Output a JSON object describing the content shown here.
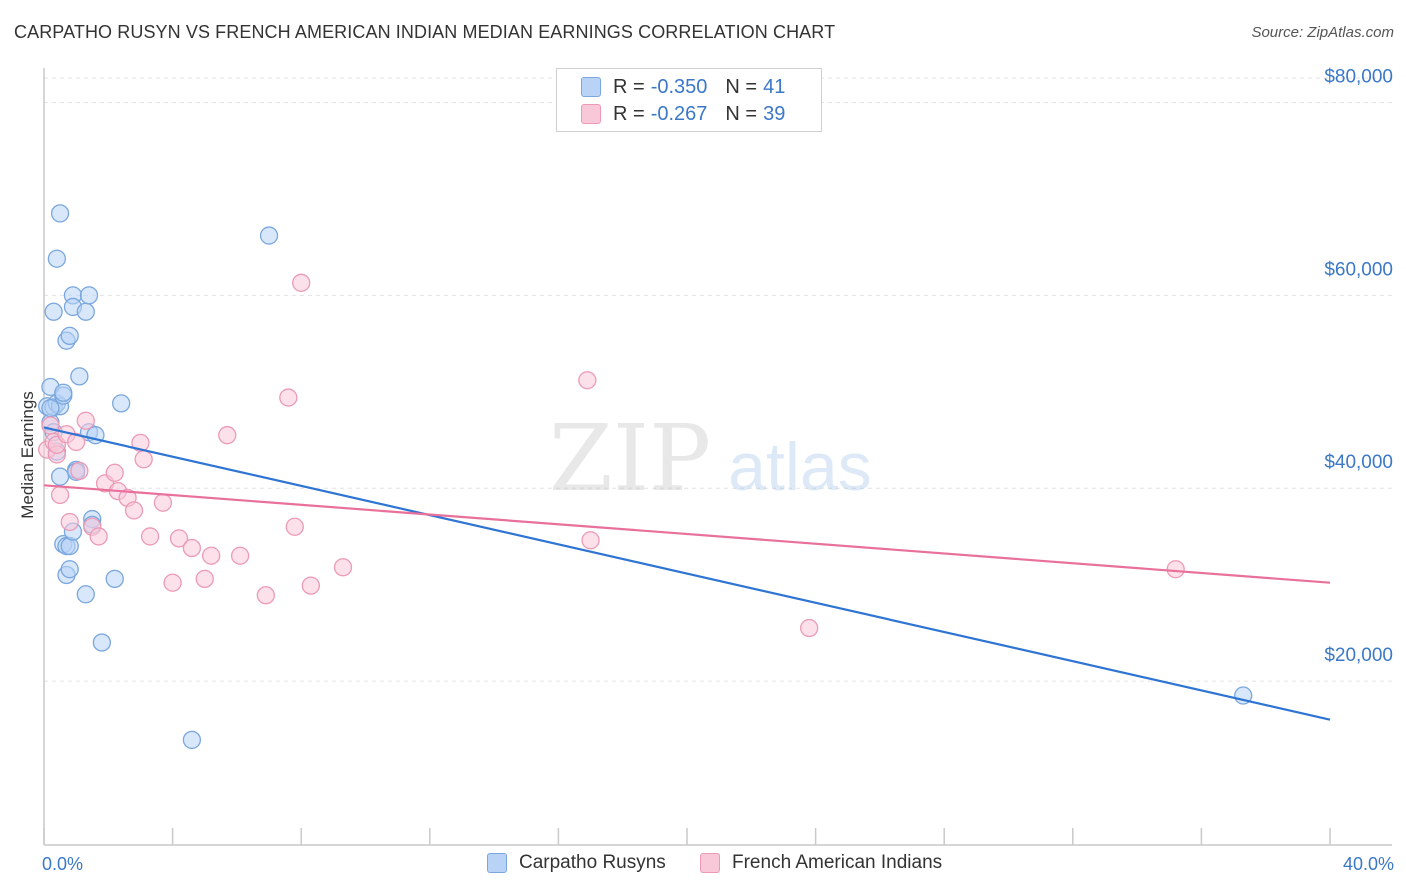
{
  "title": "CARPATHO RUSYN VS FRENCH AMERICAN INDIAN MEDIAN EARNINGS CORRELATION CHART",
  "source": "Source: ZipAtlas.com",
  "watermark": {
    "part1": "ZIP",
    "part2": "atlas"
  },
  "colors": {
    "blue_fill": "#b8d3f5",
    "blue_stroke": "#7aa7de",
    "blue_line": "#2e74d3",
    "pink_fill": "#f9c8d8",
    "pink_stroke": "#ec9ab5",
    "pink_line": "#e8709a",
    "accent_text": "#3b78c8",
    "grid": "#e3e3e3"
  },
  "legend": {
    "rows": [
      {
        "r_label": "R =",
        "r_value": "-0.350",
        "n_label": "N =",
        "n_value": "41"
      },
      {
        "r_label": "R =",
        "r_value": "-0.267",
        "n_label": "N =",
        "n_value": "39"
      }
    ]
  },
  "bottom_legend": {
    "series1": "Carpatho Rusyns",
    "series2": "French American Indians"
  },
  "chart_data": {
    "type": "scatter",
    "title": "CARPATHO RUSYN VS FRENCH AMERICAN INDIAN MEDIAN EARNINGS CORRELATION CHART",
    "xlabel": "",
    "ylabel": "Median Earnings",
    "xlim": [
      0,
      40
    ],
    "ylim": [
      3000,
      87000
    ],
    "x_tick_labels": [
      "0.0%",
      "40.0%"
    ],
    "y_ticks": [
      20000,
      40000,
      60000,
      80000
    ],
    "y_tick_labels": [
      "$20,000",
      "$40,000",
      "$60,000",
      "$80,000"
    ],
    "grid": true,
    "series": [
      {
        "name": "Carpatho Rusyns",
        "r": -0.35,
        "n": 41,
        "trend": {
          "x": [
            0,
            40
          ],
          "y": [
            46300,
            16000
          ]
        },
        "points": [
          {
            "x": 0.1,
            "y": 48500
          },
          {
            "x": 0.2,
            "y": 50500
          },
          {
            "x": 0.2,
            "y": 46800
          },
          {
            "x": 0.3,
            "y": 58300
          },
          {
            "x": 0.3,
            "y": 45800
          },
          {
            "x": 0.3,
            "y": 48400
          },
          {
            "x": 0.4,
            "y": 43800
          },
          {
            "x": 0.4,
            "y": 48800
          },
          {
            "x": 0.4,
            "y": 63800
          },
          {
            "x": 0.5,
            "y": 48500
          },
          {
            "x": 0.5,
            "y": 41200
          },
          {
            "x": 0.5,
            "y": 68500
          },
          {
            "x": 0.6,
            "y": 49600
          },
          {
            "x": 0.6,
            "y": 34200
          },
          {
            "x": 0.6,
            "y": 49900
          },
          {
            "x": 0.7,
            "y": 55300
          },
          {
            "x": 0.7,
            "y": 31000
          },
          {
            "x": 0.7,
            "y": 34000
          },
          {
            "x": 0.8,
            "y": 55800
          },
          {
            "x": 0.8,
            "y": 34000
          },
          {
            "x": 0.8,
            "y": 31600
          },
          {
            "x": 0.9,
            "y": 60000
          },
          {
            "x": 0.9,
            "y": 58800
          },
          {
            "x": 0.9,
            "y": 35500
          },
          {
            "x": 1.0,
            "y": 41900
          },
          {
            "x": 1.0,
            "y": 41700
          },
          {
            "x": 1.1,
            "y": 51600
          },
          {
            "x": 1.3,
            "y": 58300
          },
          {
            "x": 1.3,
            "y": 29000
          },
          {
            "x": 1.4,
            "y": 60000
          },
          {
            "x": 1.4,
            "y": 45800
          },
          {
            "x": 1.5,
            "y": 36800
          },
          {
            "x": 1.5,
            "y": 36200
          },
          {
            "x": 1.6,
            "y": 45500
          },
          {
            "x": 1.8,
            "y": 24000
          },
          {
            "x": 2.2,
            "y": 30600
          },
          {
            "x": 2.4,
            "y": 48800
          },
          {
            "x": 4.6,
            "y": 13900
          },
          {
            "x": 7.0,
            "y": 66200
          },
          {
            "x": 37.3,
            "y": 18500
          },
          {
            "x": 0.2,
            "y": 48300
          }
        ]
      },
      {
        "name": "French American Indians",
        "r": -0.267,
        "n": 39,
        "trend": {
          "x": [
            0,
            40
          ],
          "y": [
            40300,
            30200
          ]
        },
        "points": [
          {
            "x": 0.1,
            "y": 44000
          },
          {
            "x": 0.2,
            "y": 46500
          },
          {
            "x": 0.3,
            "y": 44800
          },
          {
            "x": 0.4,
            "y": 43500
          },
          {
            "x": 0.4,
            "y": 44500
          },
          {
            "x": 0.5,
            "y": 39300
          },
          {
            "x": 0.7,
            "y": 45600
          },
          {
            "x": 0.8,
            "y": 36500
          },
          {
            "x": 1.0,
            "y": 44800
          },
          {
            "x": 1.1,
            "y": 41800
          },
          {
            "x": 1.3,
            "y": 47000
          },
          {
            "x": 1.5,
            "y": 36000
          },
          {
            "x": 1.7,
            "y": 35000
          },
          {
            "x": 1.9,
            "y": 40500
          },
          {
            "x": 2.2,
            "y": 41600
          },
          {
            "x": 2.3,
            "y": 39700
          },
          {
            "x": 2.6,
            "y": 39000
          },
          {
            "x": 2.8,
            "y": 37700
          },
          {
            "x": 3.0,
            "y": 44700
          },
          {
            "x": 3.1,
            "y": 43000
          },
          {
            "x": 3.3,
            "y": 35000
          },
          {
            "x": 3.7,
            "y": 38500
          },
          {
            "x": 4.0,
            "y": 30200
          },
          {
            "x": 4.2,
            "y": 34800
          },
          {
            "x": 4.6,
            "y": 33800
          },
          {
            "x": 5.0,
            "y": 30600
          },
          {
            "x": 5.2,
            "y": 33000
          },
          {
            "x": 5.7,
            "y": 45500
          },
          {
            "x": 6.1,
            "y": 33000
          },
          {
            "x": 6.9,
            "y": 28900
          },
          {
            "x": 7.6,
            "y": 49400
          },
          {
            "x": 7.8,
            "y": 36000
          },
          {
            "x": 8.0,
            "y": 61300
          },
          {
            "x": 8.3,
            "y": 29900
          },
          {
            "x": 9.3,
            "y": 31800
          },
          {
            "x": 17.0,
            "y": 34600
          },
          {
            "x": 16.9,
            "y": 51200
          },
          {
            "x": 23.8,
            "y": 25500
          },
          {
            "x": 35.2,
            "y": 31600
          }
        ]
      }
    ]
  }
}
